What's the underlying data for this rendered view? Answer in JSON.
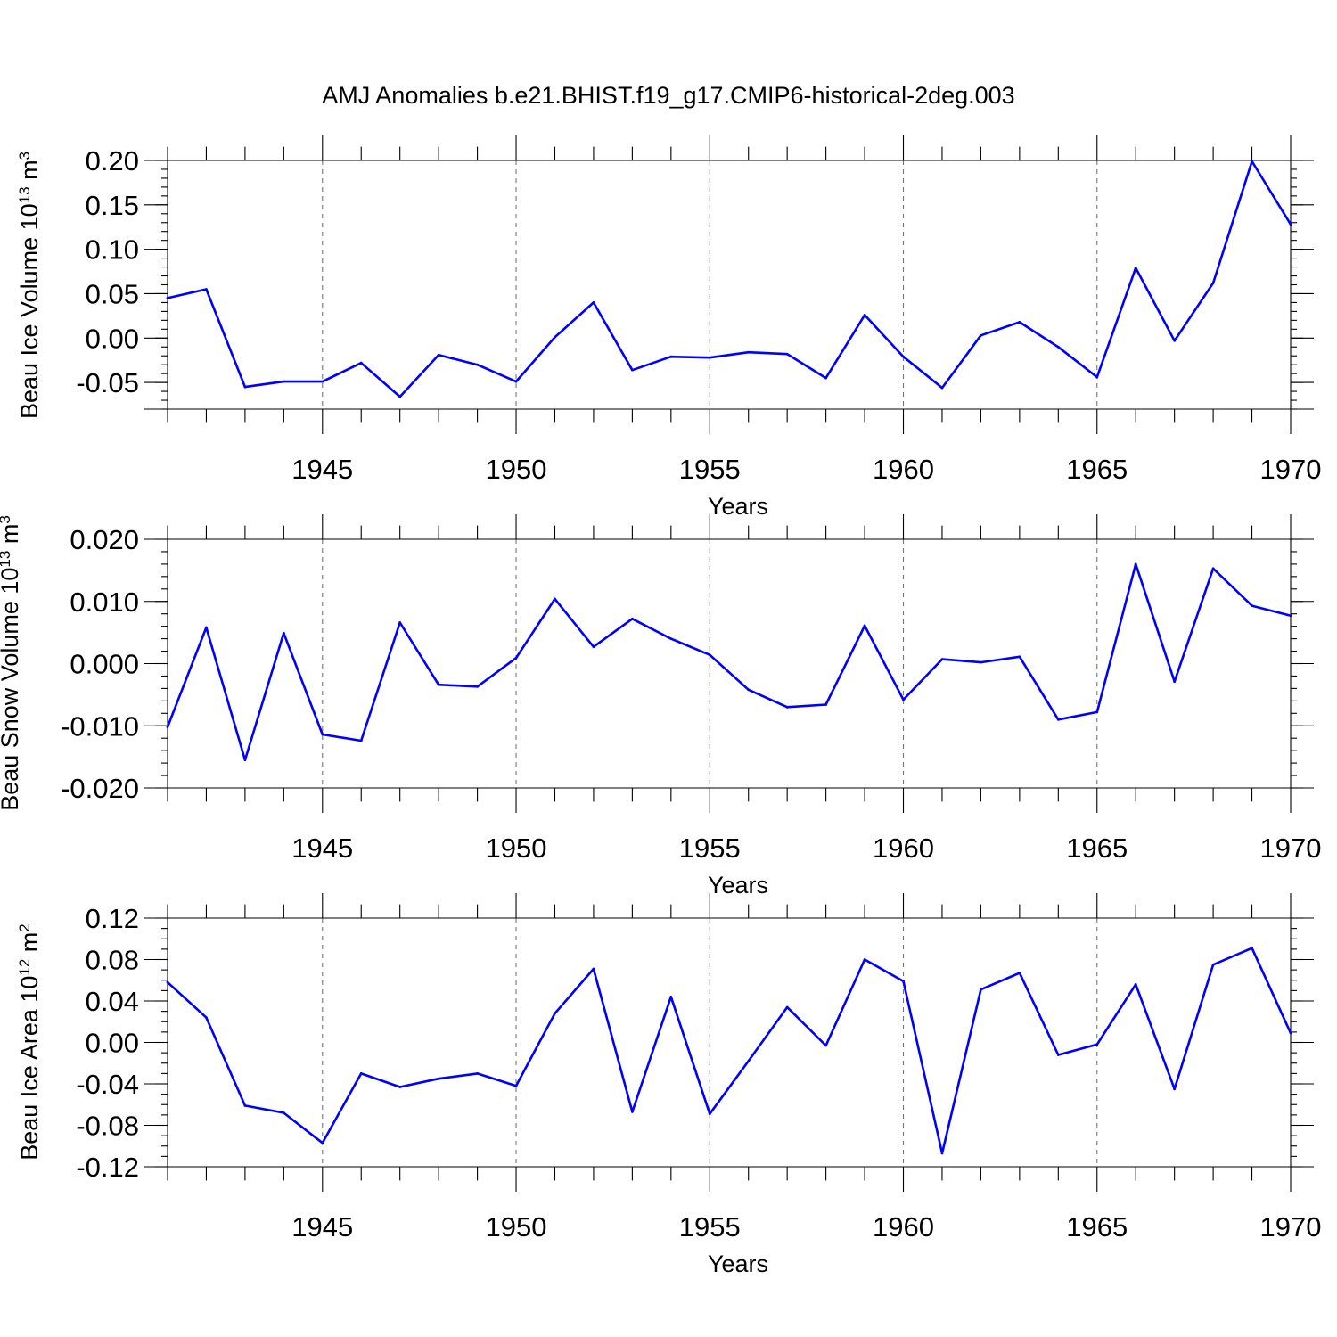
{
  "title": "AMJ Anomalies b.e21.BHIST.f19_g17.CMIP6-historical-2deg.003",
  "line_color": "#0000ff",
  "chart_data": [
    {
      "type": "line",
      "title": "AMJ Anomalies b.e21.BHIST.f19_g17.CMIP6-historical-2deg.003",
      "xlabel": "Years",
      "ylabel_main": "Beau Ice Volume 10",
      "ylabel_exp": "13",
      "ylabel_unit": " m",
      "ylabel_unit_exp": "3",
      "xlim": [
        1941,
        1970
      ],
      "ylim": [
        -0.08,
        0.2
      ],
      "yticks": [
        -0.05,
        0.0,
        0.05,
        0.1,
        0.15,
        0.2
      ],
      "ytick_labels": [
        "-0.05",
        "0.00",
        "0.05",
        "0.10",
        "0.15",
        "0.20"
      ],
      "yminor_step": 0.01,
      "xticks": [
        1945,
        1950,
        1955,
        1960,
        1965,
        1970
      ],
      "xtick_labels": [
        "1945",
        "1950",
        "1955",
        "1960",
        "1965",
        "1970"
      ],
      "grid": "dashed vertical at major x ticks",
      "x": [
        1941,
        1942,
        1943,
        1944,
        1945,
        1946,
        1947,
        1948,
        1949,
        1950,
        1951,
        1952,
        1953,
        1954,
        1955,
        1956,
        1957,
        1958,
        1959,
        1960,
        1961,
        1962,
        1963,
        1964,
        1965,
        1966,
        1967,
        1968,
        1969,
        1970
      ],
      "series": [
        {
          "name": "Beau Ice Volume",
          "values": [
            0.045,
            0.055,
            -0.055,
            -0.049,
            -0.049,
            -0.028,
            -0.066,
            -0.019,
            -0.03,
            -0.049,
            0.001,
            0.04,
            -0.036,
            -0.021,
            -0.022,
            -0.016,
            -0.018,
            -0.045,
            0.026,
            -0.021,
            -0.056,
            0.003,
            0.018,
            -0.01,
            -0.044,
            0.079,
            -0.003,
            0.062,
            0.199,
            0.128
          ]
        }
      ]
    },
    {
      "type": "line",
      "xlabel": "Years",
      "ylabel_main": "Beau Snow Volume 10",
      "ylabel_exp": "13",
      "ylabel_unit": " m",
      "ylabel_unit_exp": "3",
      "xlim": [
        1941,
        1970
      ],
      "ylim": [
        -0.02,
        0.02
      ],
      "yticks": [
        -0.02,
        -0.01,
        0.0,
        0.01,
        0.02
      ],
      "ytick_labels": [
        "-0.020",
        "-0.010",
        "0.000",
        "0.010",
        "0.020"
      ],
      "yminor_step": 0.002,
      "xticks": [
        1945,
        1950,
        1955,
        1960,
        1965,
        1970
      ],
      "xtick_labels": [
        "1945",
        "1950",
        "1955",
        "1960",
        "1965",
        "1970"
      ],
      "grid": "dashed vertical at major x ticks",
      "x": [
        1941,
        1942,
        1943,
        1944,
        1945,
        1946,
        1947,
        1948,
        1949,
        1950,
        1951,
        1952,
        1953,
        1954,
        1955,
        1956,
        1957,
        1958,
        1959,
        1960,
        1961,
        1962,
        1963,
        1964,
        1965,
        1966,
        1967,
        1968,
        1969,
        1970
      ],
      "series": [
        {
          "name": "Beau Snow Volume",
          "values": [
            -0.0102,
            0.0058,
            -0.0155,
            0.0049,
            -0.0114,
            -0.0124,
            0.0066,
            -0.0034,
            -0.0037,
            0.0009,
            0.0104,
            0.0027,
            0.0072,
            0.004,
            0.0014,
            -0.0042,
            -0.007,
            -0.0066,
            0.0061,
            -0.0058,
            0.0007,
            0.0002,
            0.0011,
            -0.009,
            -0.0078,
            0.016,
            -0.0029,
            0.0153,
            0.0093,
            0.0077
          ]
        }
      ]
    },
    {
      "type": "line",
      "xlabel": "Years",
      "ylabel_main": "Beau Ice Area 10",
      "ylabel_exp": "12",
      "ylabel_unit": " m",
      "ylabel_unit_exp": "2",
      "xlim": [
        1941,
        1970
      ],
      "ylim": [
        -0.12,
        0.12
      ],
      "yticks": [
        -0.12,
        -0.08,
        -0.04,
        0.0,
        0.04,
        0.08,
        0.12
      ],
      "ytick_labels": [
        "-0.12",
        "-0.08",
        "-0.04",
        "0.00",
        "0.04",
        "0.08",
        "0.12"
      ],
      "yminor_step": 0.01,
      "xticks": [
        1945,
        1950,
        1955,
        1960,
        1965,
        1970
      ],
      "xtick_labels": [
        "1945",
        "1950",
        "1955",
        "1960",
        "1965",
        "1970"
      ],
      "grid": "dashed vertical at major x ticks",
      "x": [
        1941,
        1942,
        1943,
        1944,
        1945,
        1946,
        1947,
        1948,
        1949,
        1950,
        1951,
        1952,
        1953,
        1954,
        1955,
        1956,
        1957,
        1958,
        1959,
        1960,
        1961,
        1962,
        1963,
        1964,
        1965,
        1966,
        1967,
        1968,
        1969,
        1970
      ],
      "series": [
        {
          "name": "Beau Ice Area",
          "values": [
            0.058,
            0.024,
            -0.061,
            -0.068,
            -0.097,
            -0.03,
            -0.043,
            -0.035,
            -0.03,
            -0.042,
            0.028,
            0.071,
            -0.067,
            0.044,
            -0.069,
            -0.018,
            0.034,
            -0.003,
            0.08,
            0.059,
            -0.107,
            0.051,
            0.067,
            -0.012,
            -0.002,
            0.056,
            -0.045,
            0.075,
            0.091,
            0.009
          ]
        }
      ]
    }
  ]
}
